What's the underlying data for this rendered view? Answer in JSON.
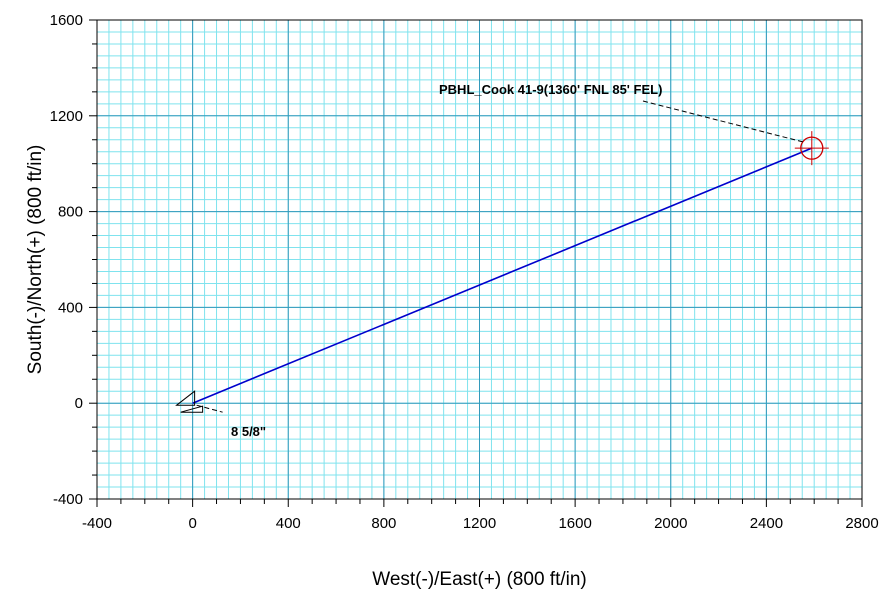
{
  "chart_data": {
    "type": "line",
    "xlabel": "West(-)/East(+) (800 ft/in)",
    "ylabel": "South(-)/North(+) (800 ft/in)",
    "xlim": [
      -400,
      2800
    ],
    "ylim": [
      -400,
      1600
    ],
    "x_ticks": [
      "-400",
      "0",
      "400",
      "800",
      "1200",
      "1600",
      "2000",
      "2400",
      "2800"
    ],
    "y_ticks": [
      "-400",
      "0",
      "400",
      "800",
      "1200",
      "1600"
    ],
    "grid": true,
    "colors": {
      "major_grid": "#3399bb",
      "minor_grid": "#7fe3ee",
      "well_path": "#0000cc",
      "target": "#cc0000"
    },
    "series": [
      {
        "x": [
          0,
          2590
        ],
        "y": [
          0,
          1065
        ]
      }
    ],
    "annotations": [
      {
        "text": "PBHL_Cook 41-9(1360' FNL 85' FEL)",
        "x": 2590,
        "y": 1065
      },
      {
        "text": "8 5/8\"",
        "x": 0,
        "y": 0
      }
    ]
  }
}
